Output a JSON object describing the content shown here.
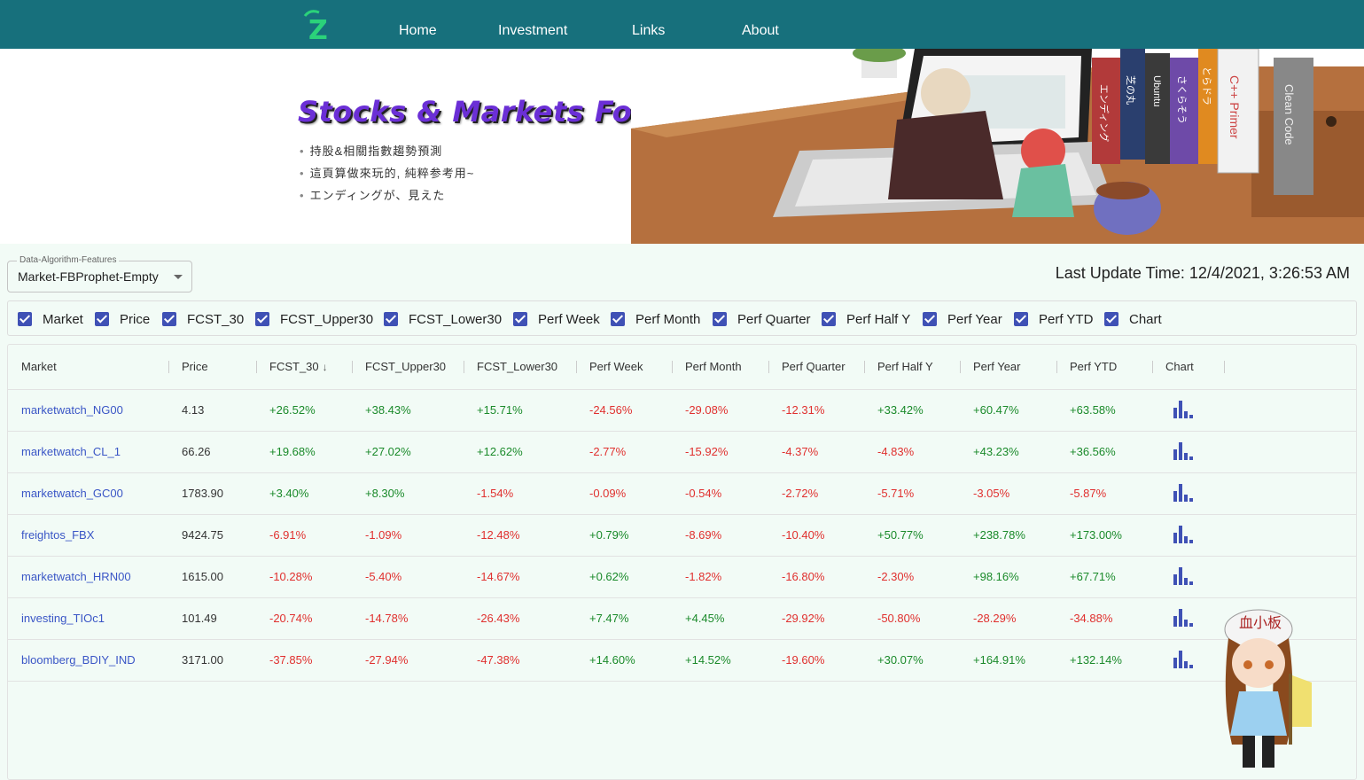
{
  "nav": {
    "logo_text": "Z",
    "items": [
      "Home",
      "Investment",
      "Links",
      "About"
    ]
  },
  "hero": {
    "title": "Stocks & Markets Forecasting",
    "bullets": [
      "持股&相關指數趨勢預測",
      "這頁算做來玩的, 純粹参考用~",
      "エンディングが、見えた"
    ],
    "book_titles": [
      "エンディング",
      "芝の丸",
      "Ubuntu",
      "さくらそう",
      "とらドラ",
      "C++ Primer",
      "Clean Code"
    ]
  },
  "controls": {
    "select_label": "Data-Algorithm-Features",
    "select_value": "Market-FBProphet-Empty",
    "last_update": "Last Update Time: 12/4/2021, 3:26:53 AM"
  },
  "columns_toggle": [
    "Market",
    "Price",
    "FCST_30",
    "FCST_Upper30",
    "FCST_Lower30",
    "Perf Week",
    "Perf Month",
    "Perf Quarter",
    "Perf Half Y",
    "Perf Year",
    "Perf YTD",
    "Chart"
  ],
  "table": {
    "headers": [
      "Market",
      "Price",
      "FCST_30",
      "FCST_Upper30",
      "FCST_Lower30",
      "Perf Week",
      "Perf Month",
      "Perf Quarter",
      "Perf Half Y",
      "Perf Year",
      "Perf YTD",
      "Chart"
    ],
    "sorted_column": "FCST_30",
    "sort_direction": "descending",
    "rows": [
      [
        "marketwatch_NG00",
        "4.13",
        "+26.52%",
        "+38.43%",
        "+15.71%",
        "-24.56%",
        "-29.08%",
        "-12.31%",
        "+33.42%",
        "+60.47%",
        "+63.58%"
      ],
      [
        "marketwatch_CL_1",
        "66.26",
        "+19.68%",
        "+27.02%",
        "+12.62%",
        "-2.77%",
        "-15.92%",
        "-4.37%",
        "-4.83%",
        "+43.23%",
        "+36.56%"
      ],
      [
        "marketwatch_GC00",
        "1783.90",
        "+3.40%",
        "+8.30%",
        "-1.54%",
        "-0.09%",
        "-0.54%",
        "-2.72%",
        "-5.71%",
        "-3.05%",
        "-5.87%"
      ],
      [
        "freightos_FBX",
        "9424.75",
        "-6.91%",
        "-1.09%",
        "-12.48%",
        "+0.79%",
        "-8.69%",
        "-10.40%",
        "+50.77%",
        "+238.78%",
        "+173.00%"
      ],
      [
        "marketwatch_HRN00",
        "1615.00",
        "-10.28%",
        "-5.40%",
        "-14.67%",
        "+0.62%",
        "-1.82%",
        "-16.80%",
        "-2.30%",
        "+98.16%",
        "+67.71%"
      ],
      [
        "investing_TIOc1",
        "101.49",
        "-20.74%",
        "-14.78%",
        "-26.43%",
        "+7.47%",
        "+4.45%",
        "-29.92%",
        "-50.80%",
        "-28.29%",
        "-34.88%"
      ],
      [
        "bloomberg_BDIY_IND",
        "3171.00",
        "-37.85%",
        "-27.94%",
        "-47.38%",
        "+14.60%",
        "+14.52%",
        "-19.60%",
        "+30.07%",
        "+164.91%",
        "+132.14%"
      ]
    ]
  },
  "mascot": {
    "cap_text": "血小板"
  },
  "colors": {
    "nav": "#17707c",
    "accent": "#3f51b5",
    "positive": "#1a8a2a",
    "negative": "#e0302e",
    "link": "#3a56c6",
    "title": "#6b2fd6"
  }
}
